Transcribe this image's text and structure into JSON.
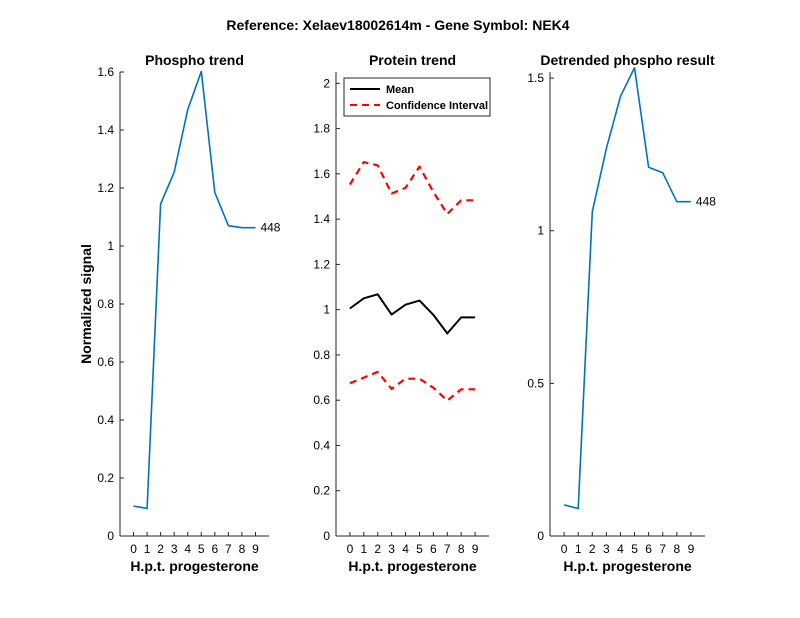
{
  "figure": {
    "suptitle": "Reference:  Xelaev18002614m - Gene Symbol:  NEK4"
  },
  "chart_data": [
    {
      "type": "line",
      "title": "Phospho trend",
      "xlabel": "H.p.t. progesterone",
      "ylabel": "Normalized signal",
      "xlim": [
        -1,
        10
      ],
      "ylim": [
        0,
        1.6
      ],
      "xticks": [
        0,
        1,
        2,
        3,
        4,
        5,
        6,
        7,
        8,
        9
      ],
      "yticks": [
        0,
        0.2,
        0.4,
        0.6,
        0.8,
        1.0,
        1.2,
        1.4,
        1.6
      ],
      "ytick_labels": [
        "0",
        "0.2",
        "0.4",
        "0.6",
        "0.8",
        "1",
        "1.2",
        "1.4",
        "1.6"
      ],
      "series": [
        {
          "color": "#0072BD",
          "style": "solid",
          "x": [
            0,
            1,
            2,
            3,
            4,
            5,
            6,
            7,
            8,
            9
          ],
          "y": [
            0.103,
            0.095,
            1.145,
            1.255,
            1.47,
            1.602,
            1.185,
            1.07,
            1.063,
            1.063
          ]
        }
      ],
      "annotation": {
        "text": "448",
        "x": 9,
        "y": 1.063
      }
    },
    {
      "type": "line",
      "title": "Protein trend",
      "xlabel": "H.p.t. progesterone",
      "ylabel": "",
      "xlim": [
        -1,
        10
      ],
      "ylim": [
        0,
        2.05
      ],
      "xticks": [
        0,
        1,
        2,
        3,
        4,
        5,
        6,
        7,
        8,
        9
      ],
      "yticks": [
        0,
        0.2,
        0.4,
        0.6,
        0.8,
        1.0,
        1.2,
        1.4,
        1.6,
        1.8,
        2.0
      ],
      "ytick_labels": [
        "0",
        "0.2",
        "0.4",
        "0.6",
        "0.8",
        "1",
        "1.2",
        "1.4",
        "1.6",
        "1.8",
        "2"
      ],
      "legend": {
        "placement": "top-left",
        "entries": [
          {
            "label": "Mean",
            "color": "#000000",
            "style": "solid"
          },
          {
            "label": "Confidence Interval",
            "color": "#FF0000",
            "style": "dashed"
          }
        ]
      },
      "series": [
        {
          "name": "Mean",
          "color": "#000000",
          "style": "solid",
          "x": [
            0,
            1,
            2,
            3,
            4,
            5,
            6,
            7,
            8,
            9
          ],
          "y": [
            1.005,
            1.05,
            1.068,
            0.978,
            1.022,
            1.04,
            0.977,
            0.895,
            0.966,
            0.966
          ]
        },
        {
          "name": "Confidence Interval",
          "color": "#FF0000",
          "style": "dashed",
          "x": [
            0,
            1,
            2,
            3,
            4,
            5,
            6,
            7,
            8,
            9
          ],
          "y": [
            1.553,
            1.652,
            1.638,
            1.513,
            1.538,
            1.632,
            1.52,
            1.423,
            1.483,
            1.483
          ]
        },
        {
          "name": "Confidence Interval",
          "color": "#FF0000",
          "style": "dashed",
          "x": [
            0,
            1,
            2,
            3,
            4,
            5,
            6,
            7,
            8,
            9
          ],
          "y": [
            0.675,
            0.7,
            0.725,
            0.65,
            0.695,
            0.695,
            0.655,
            0.598,
            0.648,
            0.648
          ]
        }
      ]
    },
    {
      "type": "line",
      "title": "Detrended phospho result",
      "xlabel": "H.p.t. progesterone",
      "ylabel": "",
      "xlim": [
        -1,
        10
      ],
      "ylim": [
        0,
        1.52
      ],
      "xticks": [
        0,
        1,
        2,
        3,
        4,
        5,
        6,
        7,
        8,
        9
      ],
      "yticks": [
        0,
        0.5,
        1.0,
        1.5
      ],
      "ytick_labels": [
        "0",
        "0.5",
        "1",
        "1.5"
      ],
      "series": [
        {
          "color": "#0072BD",
          "style": "solid",
          "x": [
            0,
            1,
            2,
            3,
            4,
            5,
            6,
            7,
            8,
            9
          ],
          "y": [
            0.102,
            0.09,
            1.062,
            1.27,
            1.44,
            1.534,
            1.208,
            1.19,
            1.095,
            1.095
          ]
        }
      ],
      "annotation": {
        "text": "448",
        "x": 9,
        "y": 1.095
      }
    }
  ]
}
